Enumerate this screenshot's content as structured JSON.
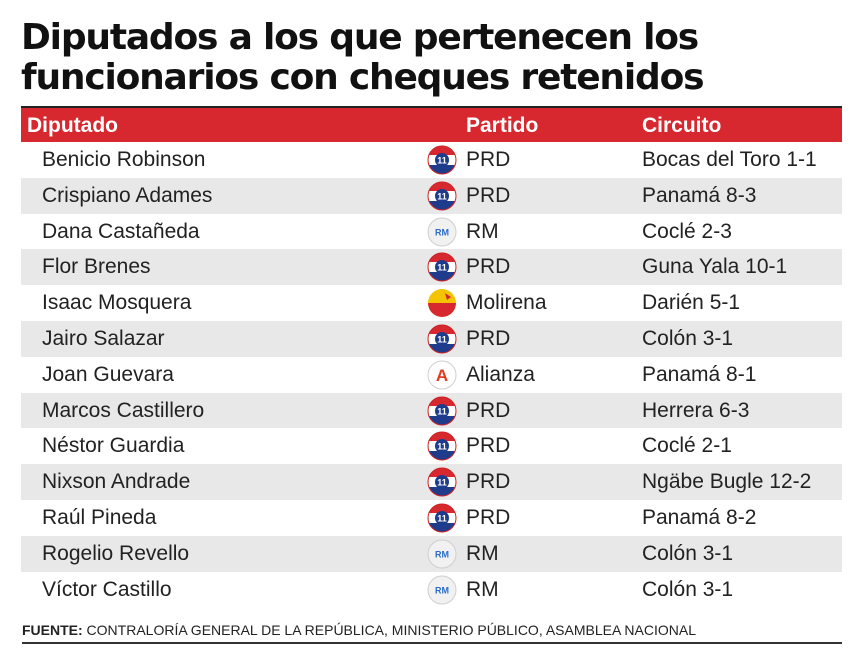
{
  "title": {
    "line1": "Diputados a los que pertenecen los",
    "line2": "funcionarios con cheques retenidos"
  },
  "table": {
    "headers": {
      "diputado": "Diputado",
      "partido": "Partido",
      "circuito": "Circuito"
    },
    "rows": [
      {
        "diputado": "Benicio Robinson",
        "partido": "PRD",
        "circuito": "Bocas del Toro 1-1",
        "logo": "prd-logo"
      },
      {
        "diputado": "Crispiano Adames",
        "partido": "PRD",
        "circuito": "Panamá 8-3",
        "logo": "prd-logo"
      },
      {
        "diputado": "Dana Castañeda",
        "partido": "RM",
        "circuito": "Coclé 2-3",
        "logo": "rm-logo"
      },
      {
        "diputado": "Flor Brenes",
        "partido": "PRD",
        "circuito": "Guna Yala 10-1",
        "logo": "prd-logo"
      },
      {
        "diputado": "Isaac Mosquera",
        "partido": "Molirena",
        "circuito": "Darién 5-1",
        "logo": "molirena-logo"
      },
      {
        "diputado": "Jairo  Salazar",
        "partido": "PRD",
        "circuito": "Colón 3-1",
        "logo": "prd-logo"
      },
      {
        "diputado": "Joan Guevara",
        "partido": "Alianza",
        "circuito": "Panamá 8-1",
        "logo": "alianza-logo"
      },
      {
        "diputado": "Marcos Castillero",
        "partido": "PRD",
        "circuito": "Herrera 6-3",
        "logo": "prd-logo"
      },
      {
        "diputado": "Néstor Guardia",
        "partido": "PRD",
        "circuito": "Coclé 2-1",
        "logo": "prd-logo"
      },
      {
        "diputado": "Nixson Andrade",
        "partido": "PRD",
        "circuito": "Ngäbe Bugle 12-2",
        "logo": "prd-logo"
      },
      {
        "diputado": "Raúl Pineda",
        "partido": "PRD",
        "circuito": "Panamá 8-2",
        "logo": "prd-logo"
      },
      {
        "diputado": "Rogelio Revello",
        "partido": "RM",
        "circuito": "Colón 3-1",
        "logo": "rm-logo"
      },
      {
        "diputado": "Víctor Castillo",
        "partido": "RM",
        "circuito": "Colón 3-1",
        "logo": "rm-logo"
      }
    ]
  },
  "source": {
    "label": "FUENTE:",
    "text": " CONTRALORÍA GENERAL DE LA REPÚBLICA, MINISTERIO PÚBLICO, ASAMBLEA NACIONAL"
  },
  "colors": {
    "header_bg": "#d7282f",
    "row_shade": "#e8e8e8"
  },
  "logos": {
    "prd": {
      "number": "11"
    },
    "rm": {
      "letters": "RM"
    },
    "alianza": {
      "letter": "A"
    }
  }
}
